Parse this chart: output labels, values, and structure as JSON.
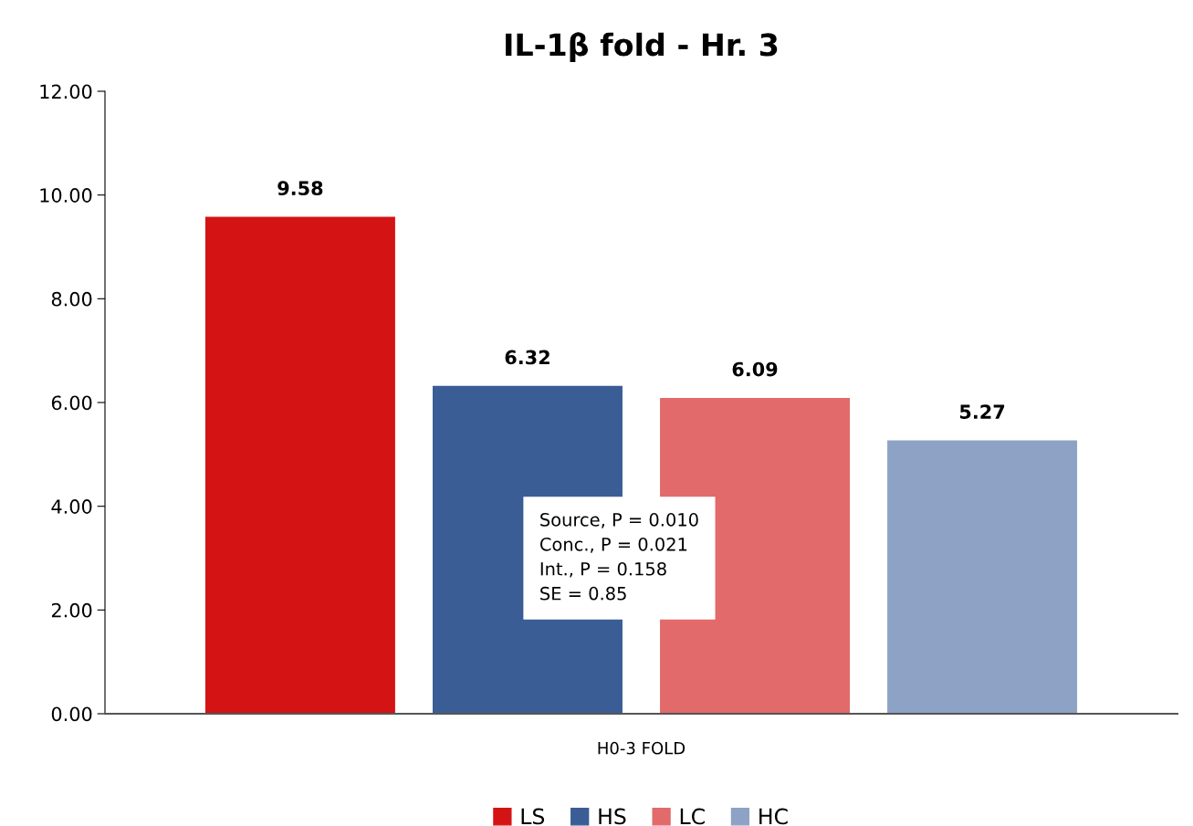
{
  "chart_data": {
    "type": "bar",
    "title": "IL-1β fold - Hr. 3",
    "categories": [
      "H0-3 FOLD"
    ],
    "series": [
      {
        "name": "LS",
        "color": "#d41414",
        "values": [
          9.58
        ]
      },
      {
        "name": "HS",
        "color": "#3a5d95",
        "values": [
          6.32
        ]
      },
      {
        "name": "LC",
        "color": "#e26a6a",
        "values": [
          6.09
        ]
      },
      {
        "name": "HC",
        "color": "#8ea2c6",
        "values": [
          5.27
        ]
      }
    ],
    "ylim": [
      0,
      12
    ],
    "yticks": [
      {
        "value": 0,
        "label": "0.00"
      },
      {
        "value": 2,
        "label": "2.00"
      },
      {
        "value": 4,
        "label": "4.00"
      },
      {
        "value": 6,
        "label": "6.00"
      },
      {
        "value": 8,
        "label": "8.00"
      },
      {
        "value": 10,
        "label": "10.00"
      },
      {
        "value": 12,
        "label": "12.00"
      }
    ],
    "data_labels": true,
    "grid": false,
    "legend": "bottom",
    "annotations": [
      "Source, P = 0.010\nConc., P = 0.021\nInt., P = 0.158\nSE = 0.85"
    ]
  }
}
